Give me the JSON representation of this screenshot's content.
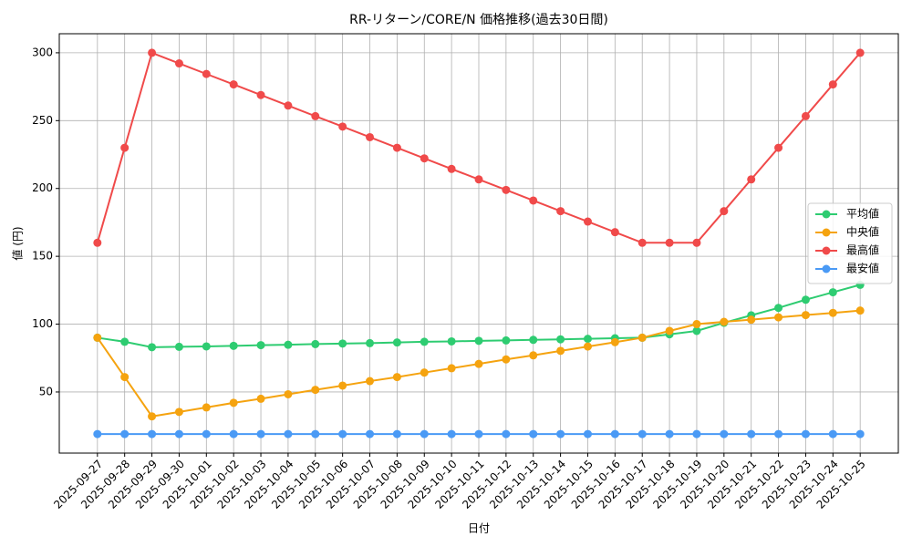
{
  "chart_data": {
    "type": "line",
    "title": "RR-リターン/CORE/N 価格推移(過去30日間)",
    "x_label": "日付",
    "y_label": "値 (円)",
    "categories": [
      "2025-09-27",
      "2025-09-28",
      "2025-09-29",
      "2025-09-30",
      "2025-10-01",
      "2025-10-02",
      "2025-10-03",
      "2025-10-04",
      "2025-10-05",
      "2025-10-06",
      "2025-10-07",
      "2025-10-08",
      "2025-10-09",
      "2025-10-10",
      "2025-10-11",
      "2025-10-12",
      "2025-10-13",
      "2025-10-14",
      "2025-10-15",
      "2025-10-16",
      "2025-10-17",
      "2025-10-18",
      "2025-10-19",
      "2025-10-20",
      "2025-10-21",
      "2025-10-22",
      "2025-10-23",
      "2025-10-24",
      "2025-10-25"
    ],
    "series": [
      {
        "name": "平均値",
        "color": "#2ecc71",
        "values": [
          90,
          87,
          83,
          83.3,
          83.6,
          84,
          84.5,
          84.8,
          85.3,
          85.7,
          86,
          86.5,
          87,
          87.3,
          87.7,
          88,
          88.4,
          88.8,
          89.2,
          89.6,
          90,
          92.5,
          95,
          101,
          106.5,
          112,
          118,
          123.5,
          129
        ]
      },
      {
        "name": "中央値",
        "color": "#f5a30f",
        "values": [
          90,
          61,
          32,
          35.3,
          38.6,
          42,
          45,
          48.3,
          51.6,
          54.7,
          58,
          61,
          64.3,
          67.5,
          70.7,
          74,
          77,
          80.3,
          83.5,
          86.7,
          90,
          95,
          100,
          101.7,
          103.3,
          105,
          106.7,
          108.3,
          110
        ]
      },
      {
        "name": "最高値",
        "color": "#f04a4a",
        "values": [
          160,
          230,
          300,
          292.2,
          284.4,
          276.7,
          268.9,
          261.1,
          253.3,
          245.6,
          237.8,
          230,
          222.2,
          214.4,
          206.7,
          198.9,
          191.1,
          183.3,
          175.6,
          167.8,
          160,
          160,
          160,
          183.3,
          206.7,
          230,
          253.3,
          276.7,
          300
        ]
      },
      {
        "name": "最安値",
        "color": "#4a9af5",
        "values": [
          19,
          19,
          19,
          19,
          19,
          19,
          19,
          19,
          19,
          19,
          19,
          19,
          19,
          19,
          19,
          19,
          19,
          19,
          19,
          19,
          19,
          19,
          19,
          19,
          19,
          19,
          19,
          19,
          19
        ]
      }
    ],
    "ylim": [
      4.95,
      314.05
    ],
    "yticks": [
      50,
      100,
      150,
      200,
      250,
      300
    ],
    "grid": true,
    "legend": "right"
  }
}
